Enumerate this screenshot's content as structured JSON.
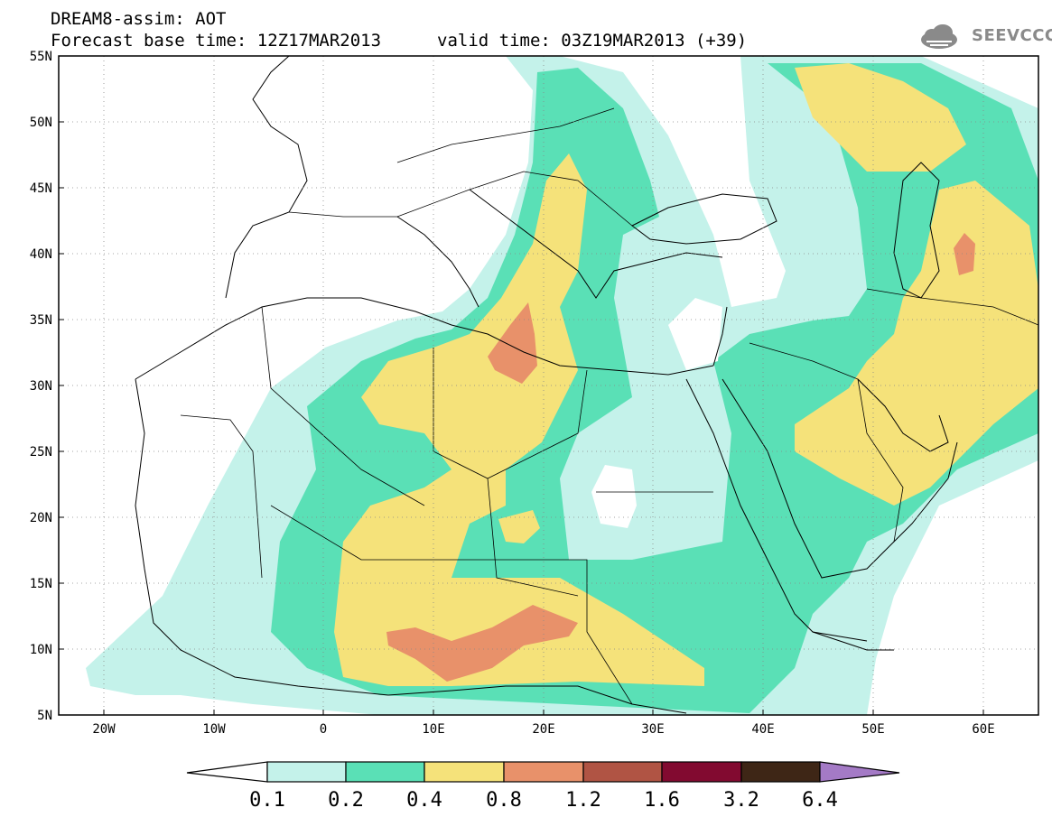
{
  "header": {
    "line1": "DREAM8-assim: AOT",
    "line2": "Forecast base time: 12Z17MAR2013",
    "line3": "valid time: 03Z19MAR2013 (+39)",
    "logo_text": "SEEVCCC"
  },
  "axes": {
    "lat_labels": [
      "55N",
      "50N",
      "45N",
      "40N",
      "35N",
      "30N",
      "25N",
      "20N",
      "15N",
      "10N",
      "5N"
    ],
    "lon_labels": [
      "20W",
      "10W",
      "0",
      "10E",
      "20E",
      "30E",
      "40E",
      "50E",
      "60E"
    ]
  },
  "colorbar": {
    "labels": [
      "0.1",
      "0.2",
      "0.4",
      "0.8",
      "1.2",
      "1.6",
      "3.2",
      "6.4"
    ],
    "colors": [
      "#c4f2ea",
      "#5ae0b6",
      "#f5e27a",
      "#e8916a",
      "#b05444",
      "#820a30",
      "#3e2616",
      "#a47ac6"
    ]
  },
  "colors": {
    "c01": "#c4f2ea",
    "c02": "#5ae0b6",
    "c04": "#f5e27a",
    "c08": "#e8916a"
  }
}
